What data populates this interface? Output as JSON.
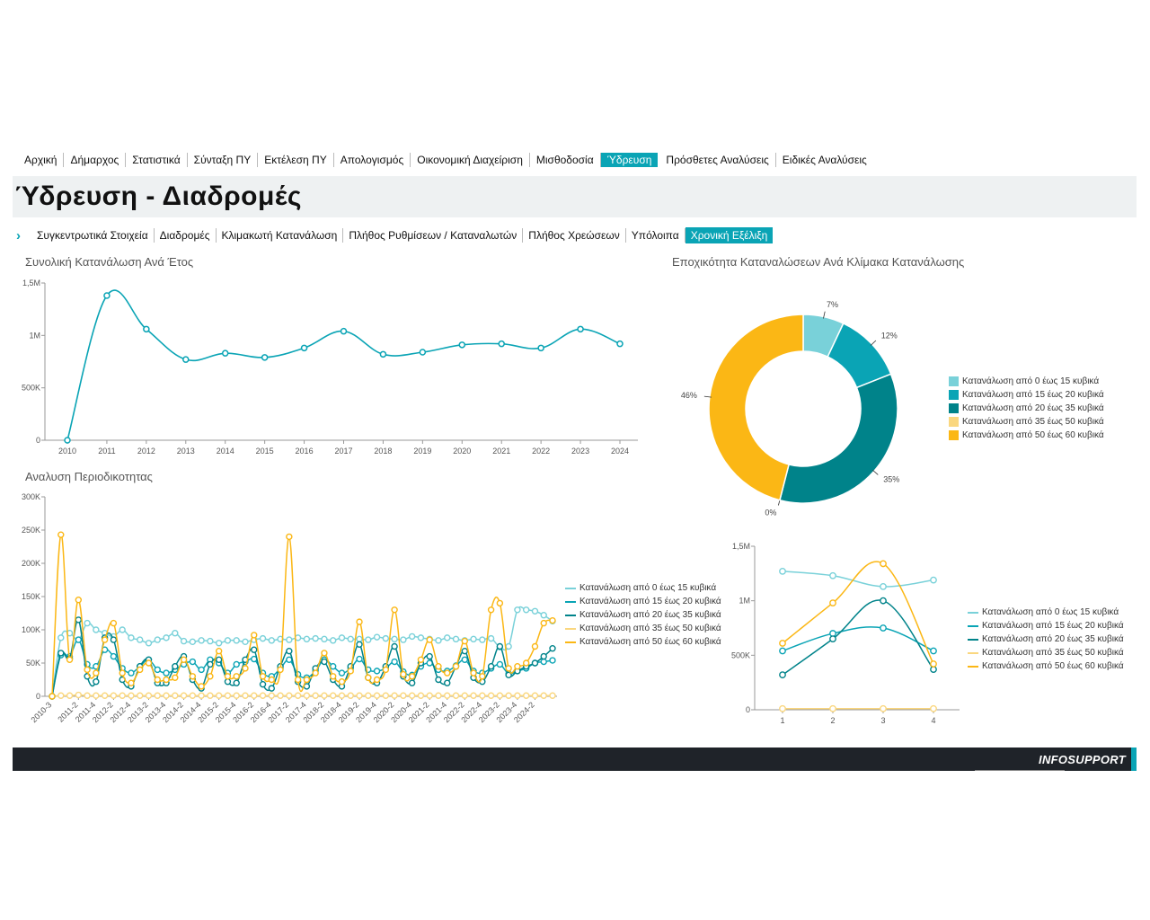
{
  "nav": {
    "items": [
      "Αρχική",
      "Δήμαρχος",
      "Στατιστικά",
      "Σύνταξη ΠΥ",
      "Εκτέλεση ΠΥ",
      "Απολογισμός",
      "Οικονομική Διαχείριση",
      "Μισθοδοσία",
      "Ύδρευση",
      "Πρόσθετες Αναλύσεις",
      "Ειδικές Αναλύσεις"
    ],
    "active_index": 8
  },
  "page": {
    "title": "Ύδρευση - Διαδρομές"
  },
  "subnav": {
    "items": [
      "Συγκεντρωτικά Στοιχεία",
      "Διαδρομές",
      "Κλιμακωτή Κατανάλωση",
      "Πλήθος Ρυθμίσεων / Καταναλωτών",
      "Πλήθος Χρεώσεων",
      "Υπόλοιπα",
      "Χρονική Εξέλιξη"
    ],
    "active_index": 6
  },
  "footer": {
    "brand": "INFOSUPPORT"
  },
  "colors": {
    "accent": "#0aa4b5",
    "s1": "#79d1d9",
    "s2": "#0aa4b5",
    "s3": "#00838a",
    "s4": "#fad77f",
    "s5": "#fbb715"
  },
  "charts": {
    "yearly": {
      "title": "Συνολική Κατανάλωση  Ανά Έτος"
    },
    "periodic": {
      "title": "Αναλυση Περιοδικοτητας"
    },
    "donut": {
      "title": "Εποχικότητα Καταναλώσεων Ανά Κλίμακα Κατανάλωσης"
    },
    "quarter": {
      "title": ""
    }
  },
  "chart_data": [
    {
      "id": "yearly",
      "type": "line",
      "title": "Συνολική Κατανάλωση  Ανά Έτος",
      "categories": [
        "2010",
        "2011",
        "2012",
        "2013",
        "2014",
        "2015",
        "2016",
        "2017",
        "2018",
        "2019",
        "2020",
        "2021",
        "2022",
        "2023",
        "2024"
      ],
      "values": [
        0,
        1380000,
        1060000,
        770000,
        830000,
        790000,
        880000,
        1040000,
        820000,
        840000,
        910000,
        920000,
        880000,
        1060000,
        920000
      ],
      "yticks": [
        "0",
        "500K",
        "1M",
        "1,5M"
      ],
      "ylim": [
        0,
        1500000
      ],
      "grid": false
    },
    {
      "id": "periodic",
      "type": "line",
      "title": "Αναλυση Περιοδικοτητας",
      "categories": [
        "2010-3",
        "2010-4",
        "2011-1",
        "2011-2",
        "2011-3",
        "2011-4",
        "2012-1",
        "2012-2",
        "2012-3",
        "2012-4",
        "2013-1",
        "2013-2",
        "2013-3",
        "2013-4",
        "2014-1",
        "2014-2",
        "2014-3",
        "2014-4",
        "2015-1",
        "2015-2",
        "2015-3",
        "2015-4",
        "2016-1",
        "2016-2",
        "2016-3",
        "2016-4",
        "2017-1",
        "2017-2",
        "2017-3",
        "2017-4",
        "2018-1",
        "2018-2",
        "2018-3",
        "2018-4",
        "2019-1",
        "2019-2",
        "2019-3",
        "2019-4",
        "2020-1",
        "2020-2",
        "2020-3",
        "2020-4",
        "2021-1",
        "2021-2",
        "2021-3",
        "2021-4",
        "2022-1",
        "2022-2",
        "2022-3",
        "2022-4",
        "2023-1",
        "2023-2",
        "2023-3",
        "2023-4",
        "2024-1",
        "2024-2",
        "2024-3",
        "2024-4"
      ],
      "xtick_labels": [
        "2010-3",
        "2011-2",
        "2011-4",
        "2012-2",
        "2012-4",
        "2013-2",
        "2013-4",
        "2014-2",
        "2014-4",
        "2015-2",
        "2015-4",
        "2016-2",
        "2016-4",
        "2017-2",
        "2017-4",
        "2018-2",
        "2018-4",
        "2019-2",
        "2019-4",
        "2020-2",
        "2020-4",
        "2021-2",
        "2021-4",
        "2022-2",
        "2022-4",
        "2023-2",
        "2023-4",
        "2024-2"
      ],
      "yticks": [
        "0",
        "50K",
        "100K",
        "150K",
        "200K",
        "250K",
        "300K"
      ],
      "ylim": [
        0,
        300000
      ],
      "series": [
        {
          "name": "Κατανάλωση από 0 έως 15 κυβικά",
          "values": [
            0,
            88000,
            95000,
            85000,
            110000,
            100000,
            95000,
            90000,
            100000,
            88000,
            85000,
            80000,
            85000,
            88000,
            95000,
            83000,
            82000,
            84000,
            83000,
            80000,
            84000,
            84000,
            82000,
            85000,
            87000,
            84000,
            86000,
            85000,
            88000,
            86000,
            87000,
            86000,
            84000,
            88000,
            86000,
            86000,
            85000,
            89000,
            87000,
            86000,
            85000,
            90000,
            88000,
            86000,
            84000,
            88000,
            86000,
            84000,
            86000,
            85000,
            87000,
            74000,
            75000,
            130000,
            130000,
            128000,
            122000,
            113000
          ]
        },
        {
          "name": "Κατανάλωση από 15 έως 20 κυβικά",
          "values": [
            0,
            62000,
            60000,
            85000,
            48000,
            45000,
            70000,
            60000,
            42000,
            35000,
            45000,
            55000,
            40000,
            35000,
            40000,
            48000,
            52000,
            40000,
            55000,
            50000,
            35000,
            48000,
            52000,
            56000,
            35000,
            30000,
            42000,
            55000,
            33000,
            28000,
            38000,
            55000,
            45000,
            35000,
            42000,
            56000,
            40000,
            38000,
            42000,
            52000,
            37000,
            32000,
            45000,
            50000,
            40000,
            38000,
            46000,
            55000,
            38000,
            35000,
            42000,
            48000,
            34000,
            38000,
            42000,
            50000,
            52000,
            54000
          ]
        },
        {
          "name": "Κατανάλωση από 20 έως 35 κυβικά",
          "values": [
            0,
            65000,
            57000,
            115000,
            30000,
            22000,
            88000,
            85000,
            25000,
            15000,
            45000,
            55000,
            20000,
            20000,
            45000,
            60000,
            25000,
            12000,
            48000,
            55000,
            22000,
            20000,
            55000,
            70000,
            18000,
            12000,
            45000,
            68000,
            22000,
            15000,
            42000,
            52000,
            25000,
            15000,
            45000,
            78000,
            28000,
            20000,
            45000,
            75000,
            30000,
            20000,
            50000,
            60000,
            25000,
            20000,
            45000,
            68000,
            28000,
            22000,
            45000,
            75000,
            32000,
            38000,
            45000,
            50000,
            60000,
            72000
          ]
        },
        {
          "name": "Κατανάλωση από 35 έως 50 κυβικά",
          "values": [
            0,
            1000,
            1000,
            2000,
            1000,
            1000,
            1000,
            1000,
            1000,
            1000,
            1000,
            1000,
            1000,
            1000,
            1000,
            1000,
            1000,
            1000,
            1000,
            1000,
            1000,
            1000,
            1000,
            1000,
            1000,
            1000,
            1000,
            1000,
            1000,
            1000,
            1000,
            1000,
            1000,
            1000,
            1000,
            1000,
            1000,
            1000,
            1000,
            1000,
            1000,
            1000,
            1000,
            1000,
            1000,
            1000,
            1000,
            1000,
            1000,
            1000,
            1000,
            1000,
            1000,
            1000,
            1000,
            1000,
            1000,
            1000
          ]
        },
        {
          "name": "Κατανάλωση από 50 έως 60 κυβικά",
          "values": [
            0,
            243000,
            55000,
            145000,
            40000,
            35000,
            85000,
            110000,
            35000,
            20000,
            40000,
            50000,
            25000,
            25000,
            28000,
            55000,
            30000,
            15000,
            30000,
            68000,
            30000,
            30000,
            42000,
            92000,
            30000,
            25000,
            40000,
            240000,
            25000,
            25000,
            35000,
            65000,
            30000,
            22000,
            38000,
            112000,
            28000,
            25000,
            40000,
            130000,
            33000,
            30000,
            55000,
            85000,
            45000,
            35000,
            45000,
            83000,
            35000,
            30000,
            130000,
            140000,
            42000,
            45000,
            50000,
            75000,
            110000,
            114000
          ]
        }
      ]
    },
    {
      "id": "donut",
      "type": "pie",
      "title": "Εποχικότητα Καταναλώσεων Ανά Κλίμακα Κατανάλωσης",
      "labels": [
        "Κατανάλωση από 0 έως 15 κυβικά",
        "Κατανάλωση από 15 έως 20 κυβικά",
        "Κατανάλωση από 20 έως 35 κυβικά",
        "Κατανάλωση από 35 έως 50 κυβικά",
        "Κατανάλωση από 50 έως 60 κυβικά"
      ],
      "values": [
        7,
        12,
        35,
        0,
        46
      ],
      "value_labels": [
        "7%",
        "12%",
        "35%",
        "0%",
        "46%"
      ]
    },
    {
      "id": "quarter",
      "type": "line",
      "categories": [
        "1",
        "2",
        "3",
        "4"
      ],
      "yticks": [
        "0",
        "500K",
        "1M",
        "1,5M"
      ],
      "ylim": [
        0,
        1500000
      ],
      "series": [
        {
          "name": "Κατανάλωση από 0 έως 15 κυβικά",
          "values": [
            1270000,
            1230000,
            1130000,
            1190000
          ]
        },
        {
          "name": "Κατανάλωση από 15 έως 20 κυβικά",
          "values": [
            540000,
            700000,
            750000,
            540000
          ]
        },
        {
          "name": "Κατανάλωση από 20 έως 35 κυβικά",
          "values": [
            320000,
            650000,
            1000000,
            370000
          ]
        },
        {
          "name": "Κατανάλωση από 35 έως 50 κυβικά",
          "values": [
            10000,
            10000,
            10000,
            10000
          ]
        },
        {
          "name": "Κατανάλωση από 50 έως 60 κυβικά",
          "values": [
            610000,
            980000,
            1340000,
            420000
          ]
        }
      ]
    }
  ]
}
